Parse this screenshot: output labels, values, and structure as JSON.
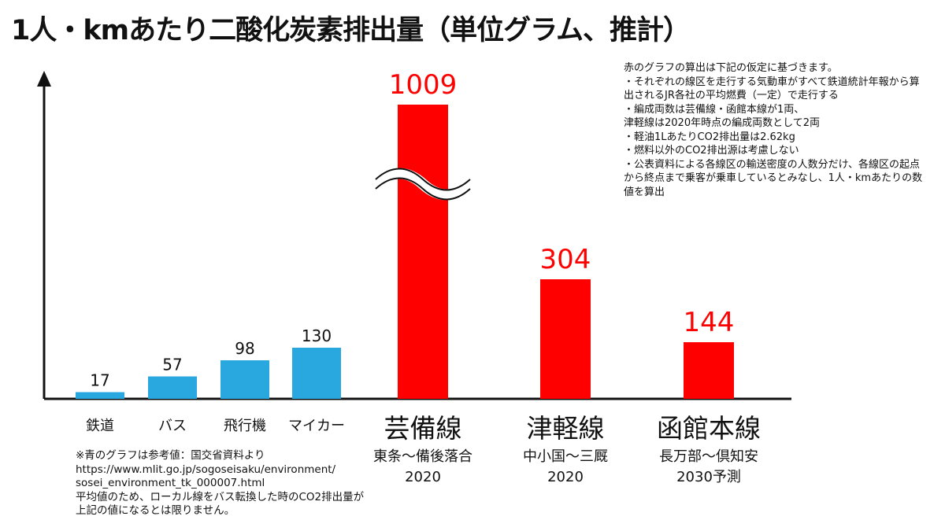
{
  "title": "1人・kmあたり二酸化炭素排出量（単位グラム、推計）",
  "colors": {
    "reference": "#29a8e0",
    "estimate": "#ff0000",
    "axis": "#111111"
  },
  "chart_data": {
    "type": "bar",
    "title": "1人・kmあたり二酸化炭素排出量（単位グラム、推計）",
    "unit": "g-CO2/人・km",
    "categories": [
      "鉄道",
      "バス",
      "飛行機",
      "マイカー",
      "芸備線",
      "津軽線",
      "函館本線"
    ],
    "values": [
      17,
      57,
      98,
      130,
      1009,
      304,
      144
    ],
    "value_labels": [
      "17",
      "57",
      "98",
      "130",
      "1009",
      "304",
      "144"
    ],
    "groups": [
      "reference",
      "reference",
      "reference",
      "reference",
      "estimate",
      "estimate",
      "estimate"
    ],
    "sublabels": [
      "",
      "",
      "",
      "",
      "東条〜備後落合\n2020",
      "中小国〜三厩\n2020",
      "長万部〜倶知安\n2030予測"
    ],
    "axis_break_on": "芸備線",
    "ylim": [
      0,
      450
    ],
    "xlabel": "",
    "ylabel": "",
    "grid": false,
    "legend": "none"
  },
  "notes": {
    "assumptions": "赤のグラフの算出は下記の仮定に基づきます。\n・それぞれの線区を走行する気動車がすべて鉄道統計年報から算出されるJR各社の平均燃費（一定）で走行する\n・編成両数は芸備線・函館本線が1両、\n津軽線は2020年時点の編成両数として2両\n・軽油1LあたりCO2排出量は2.62kg\n・燃料以外のCO2排出源は考慮しない\n・公表資料による各線区の輸送密度の人数分だけ、各線区の起点から終点まで乗客が乗車しているとみなし、1人・kmあたりの数値を算出",
    "reference": "※青のグラフは参考値：国交省資料より\nhttps://www.mlit.go.jp/sogoseisaku/environment/\nsosei_environment_tk_000007.html\n平均値のため、ローカル線をバス転換した時のCO2排出量が\n上記の値になるとは限りません。"
  }
}
